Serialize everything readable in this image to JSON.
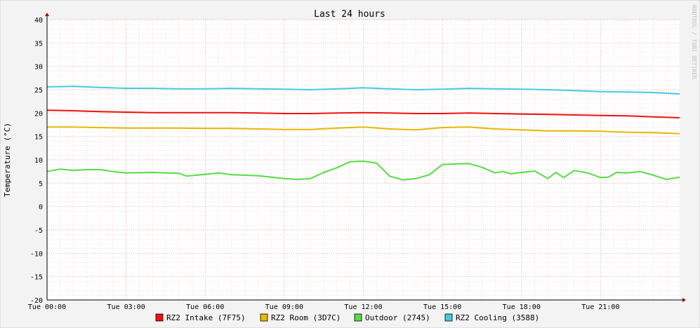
{
  "chart_data": {
    "type": "line",
    "title": "Last 24 hours",
    "ylabel": "Temperature (°C)",
    "xlabel": "",
    "watermark": "RRDTOOL / TOBI OETIKER",
    "ylim": [
      -20,
      40
    ],
    "yticks": [
      40,
      35,
      30,
      25,
      20,
      15,
      10,
      5,
      0,
      -5,
      -10,
      -15,
      -20
    ],
    "xlim": [
      0,
      24
    ],
    "xticks": [
      {
        "x": 0,
        "label": "Tue 00:00"
      },
      {
        "x": 3,
        "label": "Tue 03:00"
      },
      {
        "x": 6,
        "label": "Tue 06:00"
      },
      {
        "x": 9,
        "label": "Tue 09:00"
      },
      {
        "x": 12,
        "label": "Tue 12:00"
      },
      {
        "x": 15,
        "label": "Tue 15:00"
      },
      {
        "x": 18,
        "label": "Tue 18:00"
      },
      {
        "x": 21,
        "label": "Tue 21:00"
      }
    ],
    "grid": true,
    "legend_position": "bottom",
    "series": [
      {
        "name": "RZ2 Intake (7F75)",
        "color": "#ee1111",
        "x": [
          0,
          1,
          2,
          3,
          4,
          5,
          6,
          7,
          8,
          9,
          10,
          11,
          12,
          13,
          14,
          15,
          16,
          17,
          18,
          19,
          20,
          21,
          22,
          23,
          24
        ],
        "values": [
          20.6,
          20.5,
          20.3,
          20.2,
          20.1,
          20.1,
          20.1,
          20.1,
          20.0,
          19.9,
          19.9,
          20.0,
          20.1,
          20.0,
          19.9,
          19.9,
          20.0,
          19.9,
          19.8,
          19.7,
          19.6,
          19.5,
          19.4,
          19.2,
          19.0
        ]
      },
      {
        "name": "RZ2 Room (3D7C)",
        "color": "#e6b800",
        "x": [
          0,
          1,
          2,
          3,
          4,
          5,
          6,
          7,
          8,
          9,
          10,
          11,
          12,
          13,
          14,
          15,
          16,
          17,
          18,
          19,
          20,
          21,
          22,
          23,
          24
        ],
        "values": [
          17.0,
          17.0,
          16.9,
          16.8,
          16.8,
          16.8,
          16.7,
          16.7,
          16.6,
          16.5,
          16.5,
          16.8,
          17.0,
          16.6,
          16.4,
          16.9,
          17.0,
          16.6,
          16.4,
          16.2,
          16.2,
          16.1,
          15.9,
          15.8,
          15.6
        ]
      },
      {
        "name": "Outdoor (2745)",
        "color": "#55dd44",
        "x": [
          0,
          0.5,
          1,
          1.5,
          2,
          2.5,
          3,
          4,
          5,
          5.3,
          6,
          6.5,
          7,
          8,
          8.5,
          9,
          9.5,
          10,
          10.5,
          11,
          11.5,
          12,
          12.5,
          13,
          13.5,
          14,
          14.5,
          15,
          15.5,
          16,
          16.5,
          17,
          17.3,
          17.6,
          18,
          18.5,
          19,
          19.3,
          19.6,
          20,
          20.5,
          21,
          21.3,
          21.6,
          22,
          22.5,
          23,
          23.5,
          24
        ],
        "values": [
          7.5,
          8.0,
          7.7,
          7.9,
          7.9,
          7.5,
          7.2,
          7.3,
          7.1,
          6.5,
          6.9,
          7.2,
          6.8,
          6.6,
          6.3,
          6.0,
          5.8,
          6.0,
          7.3,
          8.3,
          9.6,
          9.7,
          9.3,
          6.5,
          5.7,
          6.0,
          6.8,
          9.0,
          9.1,
          9.2,
          8.4,
          7.2,
          7.5,
          7.0,
          7.3,
          7.6,
          6.0,
          7.3,
          6.2,
          7.7,
          7.2,
          6.2,
          6.3,
          7.3,
          7.2,
          7.5,
          6.7,
          5.8,
          6.3
        ]
      },
      {
        "name": "RZ2 Cooling (3588)",
        "color": "#44ccdd",
        "x": [
          0,
          1,
          2,
          3,
          4,
          5,
          6,
          7,
          8,
          9,
          10,
          11,
          12,
          13,
          14,
          15,
          16,
          17,
          18,
          19,
          20,
          21,
          22,
          23,
          24
        ],
        "values": [
          25.6,
          25.7,
          25.5,
          25.3,
          25.3,
          25.2,
          25.2,
          25.3,
          25.2,
          25.1,
          25.0,
          25.2,
          25.4,
          25.2,
          25.0,
          25.1,
          25.3,
          25.2,
          25.1,
          25.0,
          24.8,
          24.6,
          24.5,
          24.4,
          24.1
        ]
      }
    ]
  }
}
